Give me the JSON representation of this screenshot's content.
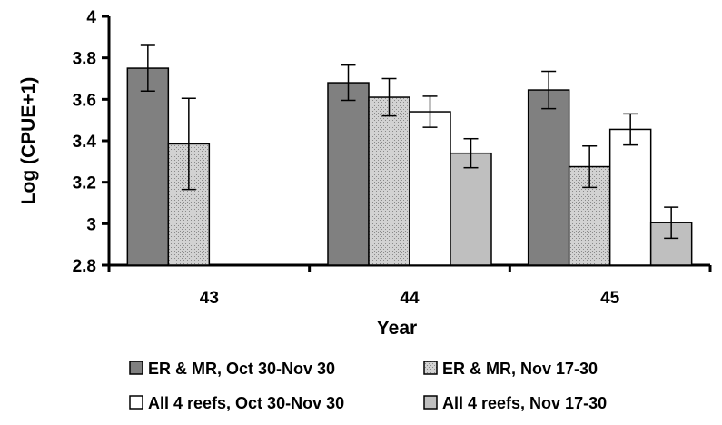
{
  "chart_data": {
    "type": "bar",
    "title": "",
    "xlabel": "Year",
    "ylabel": "Log (CPUE+1)",
    "ylim": [
      2.8,
      4
    ],
    "yticks": [
      "2.8",
      "3",
      "3.2",
      "3.4",
      "3.6",
      "3.8",
      "4"
    ],
    "categories": [
      "43",
      "44",
      "45"
    ],
    "series": [
      {
        "name": "ER & MR, Oct 30-Nov 30",
        "color": "#808080",
        "pattern": "solid-dark",
        "values": [
          3.75,
          3.68,
          3.645
        ],
        "errors": [
          0.11,
          0.085,
          0.09
        ]
      },
      {
        "name": "ER & MR, Nov 17-30",
        "color": "#c8c8c8",
        "pattern": "stipple",
        "values": [
          3.385,
          3.61,
          3.275
        ],
        "errors": [
          0.22,
          0.09,
          0.1
        ]
      },
      {
        "name": "All 4 reefs, Oct 30-Nov 30",
        "color": "#ffffff",
        "pattern": "white",
        "values": [
          null,
          3.54,
          3.455
        ],
        "errors": [
          null,
          0.075,
          0.075
        ]
      },
      {
        "name": "All 4 reefs, Nov 17-30",
        "color": "#bfbfbf",
        "pattern": "solid-light",
        "values": [
          null,
          3.34,
          3.005
        ],
        "errors": [
          null,
          0.07,
          0.075
        ]
      }
    ],
    "grid": false,
    "legend_position": "bottom"
  }
}
